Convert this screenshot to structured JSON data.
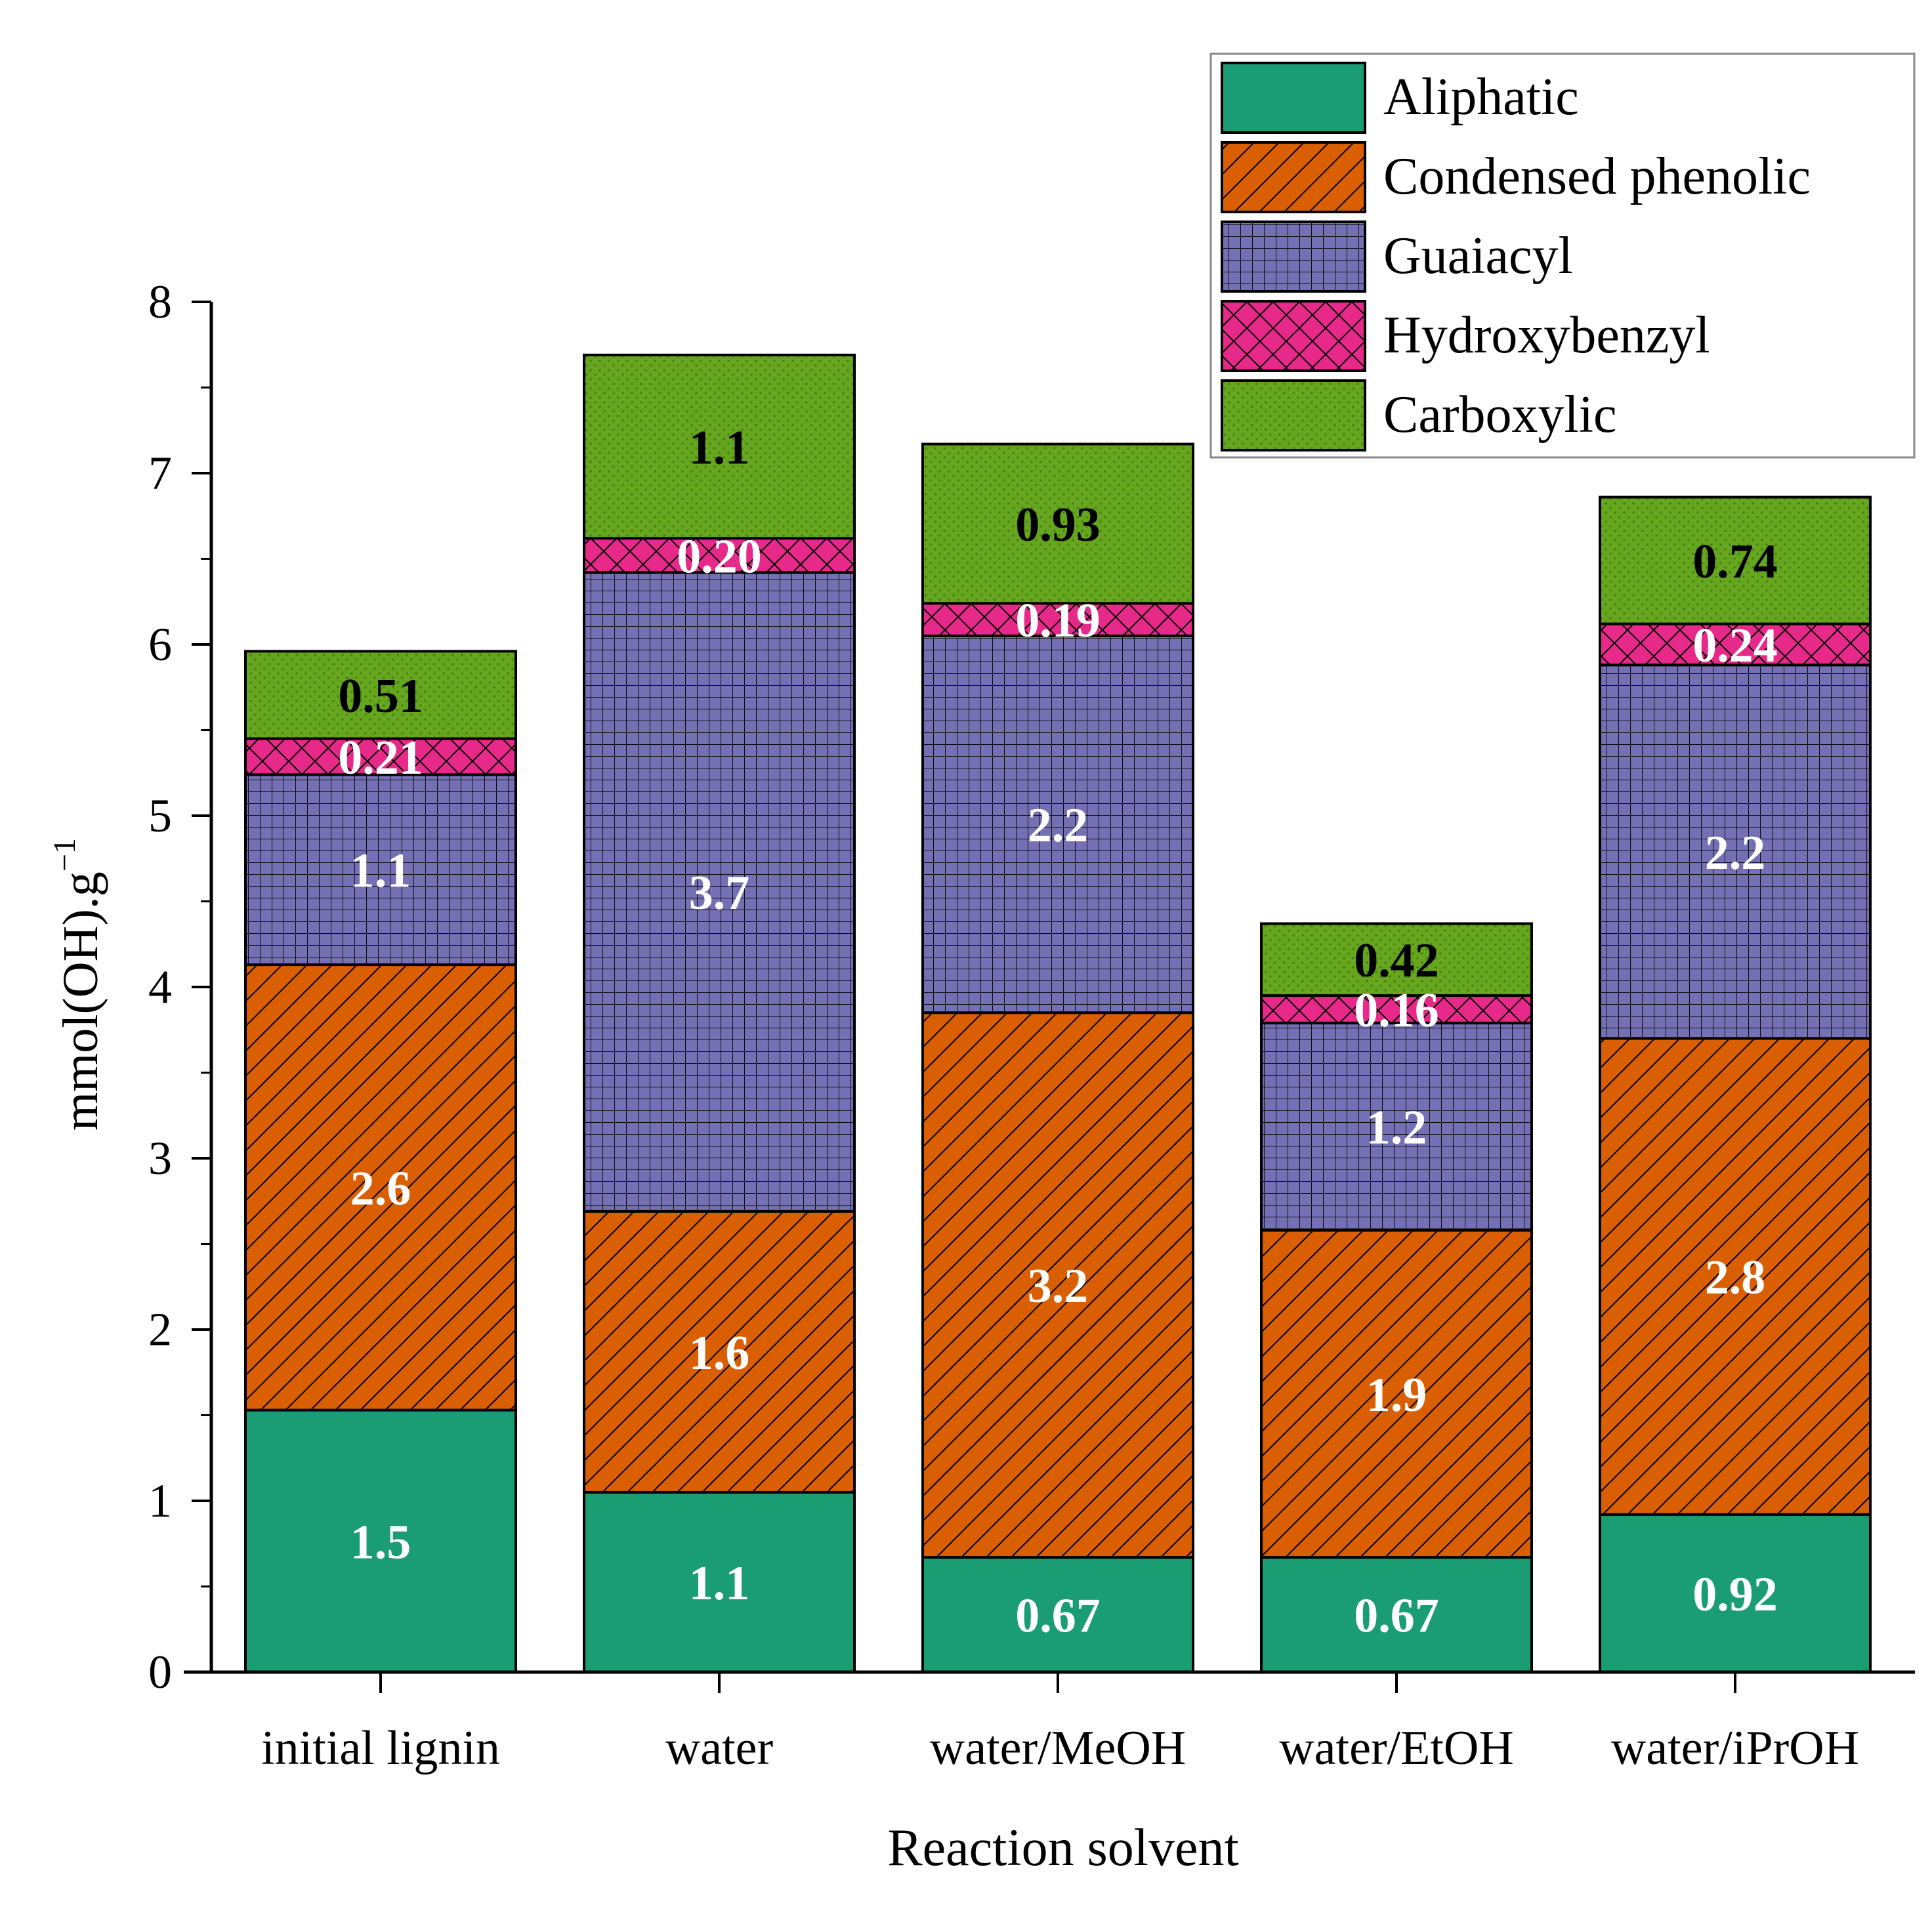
{
  "chart_data": {
    "type": "bar",
    "stacked": true,
    "xlabel": "Reaction solvent",
    "ylabel": "mmol(OH).g",
    "ylabel_superscript": "−1",
    "ylim": [
      0,
      8
    ],
    "yticks": [
      "0",
      "1",
      "2",
      "3",
      "4",
      "5",
      "6",
      "7",
      "8"
    ],
    "categories": [
      "initial lignin",
      "water",
      "water/MeOH",
      "water/EtOH",
      "water/iPrOH"
    ],
    "series": [
      {
        "name": "Aliphatic",
        "color": "#1b9d74",
        "pattern": "solid",
        "label_color": "#ffffff",
        "values": [
          1.53,
          1.05,
          0.67,
          0.67,
          0.92
        ],
        "labels": [
          "1.5",
          "1.1",
          "0.67",
          "0.67",
          "0.92"
        ]
      },
      {
        "name": "Condensed phenolic",
        "color": "#d95f02",
        "pattern": "hatch",
        "label_color": "#ffffff",
        "values": [
          2.6,
          1.64,
          3.18,
          1.91,
          2.78
        ],
        "labels": [
          "2.6",
          "1.6",
          "3.2",
          "1.9",
          "2.8"
        ]
      },
      {
        "name": "Guaiacyl",
        "color": "#7570b3",
        "pattern": "grid",
        "label_color": "#ffffff",
        "values": [
          1.11,
          3.73,
          2.2,
          1.21,
          2.18
        ],
        "labels": [
          "1.1",
          "3.7",
          "2.2",
          "1.2",
          "2.2"
        ]
      },
      {
        "name": "Hydroxybenzyl",
        "color": "#e7298a",
        "pattern": "cross",
        "label_color": "#ffffff",
        "values": [
          0.21,
          0.2,
          0.19,
          0.16,
          0.24
        ],
        "labels": [
          "0.21",
          "0.20",
          "0.19",
          "0.16",
          "0.24"
        ]
      },
      {
        "name": "Carboxylic",
        "color": "#66a61e",
        "pattern": "dots",
        "label_color": "#000000",
        "values": [
          0.51,
          1.07,
          0.93,
          0.42,
          0.74
        ],
        "labels": [
          "0.51",
          "1.1",
          "0.93",
          "0.42",
          "0.74"
        ]
      }
    ],
    "legend_position": "top-right"
  }
}
